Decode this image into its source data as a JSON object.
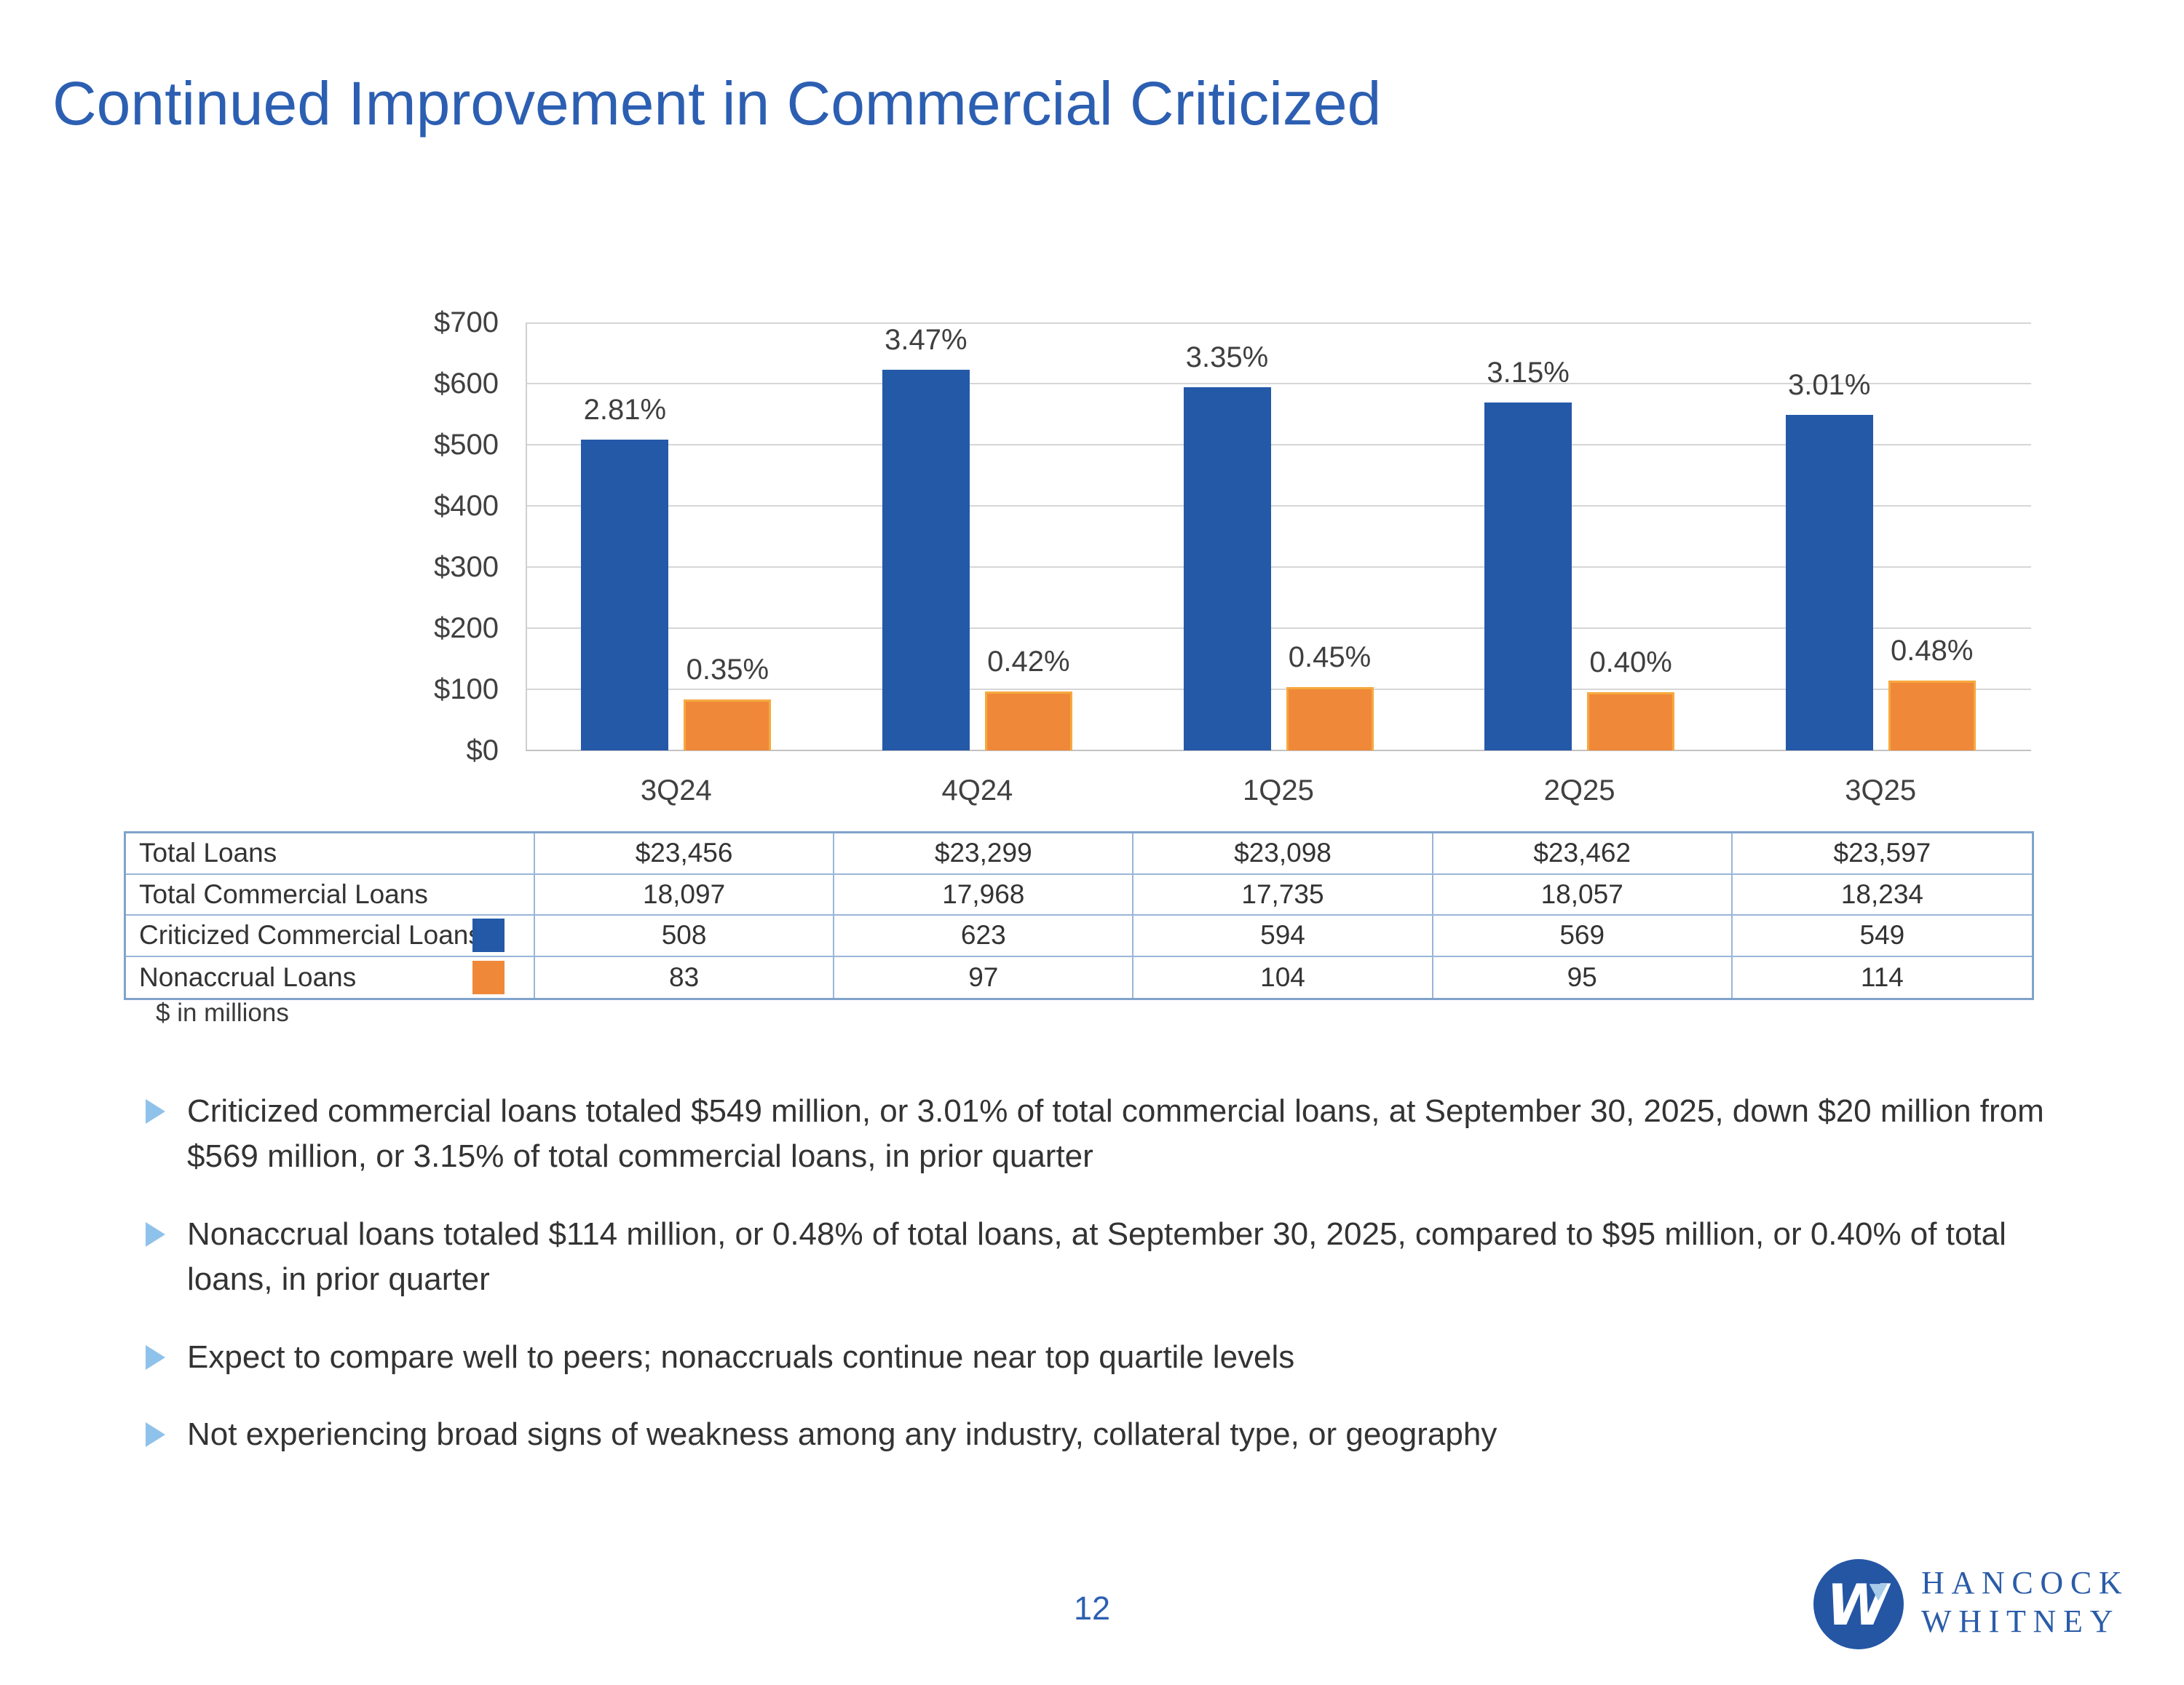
{
  "slide": {
    "title": "Continued Improvement in Commercial Criticized",
    "footnote": "$ in millions",
    "page_number": "12"
  },
  "chart_data": {
    "type": "bar",
    "title": "",
    "categories": [
      "3Q24",
      "4Q24",
      "1Q25",
      "2Q25",
      "3Q25"
    ],
    "series": [
      {
        "name": "Criticized Commercial Loans",
        "color": "#2459A8",
        "values": [
          508,
          623,
          594,
          569,
          549
        ],
        "data_labels": [
          "2.81%",
          "3.47%",
          "3.35%",
          "3.15%",
          "3.01%"
        ]
      },
      {
        "name": "Nonaccrual Loans",
        "color": "#F0883A",
        "border_color": "#F6A93E",
        "values": [
          83,
          97,
          104,
          95,
          114
        ],
        "data_labels": [
          "0.35%",
          "0.42%",
          "0.45%",
          "0.40%",
          "0.48%"
        ]
      }
    ],
    "ylabel": "",
    "xlabel": "",
    "ylim": [
      0,
      700
    ],
    "y_tick_step": 100,
    "y_ticks": [
      "$700",
      "$600",
      "$500",
      "$400",
      "$300",
      "$200",
      "$100",
      "$0"
    ],
    "grid": true,
    "legend_position": "table-swatches"
  },
  "table": {
    "rows": [
      {
        "label": "Total Loans",
        "swatch": null,
        "values": [
          "$23,456",
          "$23,299",
          "$23,098",
          "$23,462",
          "$23,597"
        ]
      },
      {
        "label": "Total Commercial Loans",
        "swatch": null,
        "values": [
          "18,097",
          "17,968",
          "17,735",
          "18,057",
          "18,234"
        ]
      },
      {
        "label": "Criticized Commercial Loans",
        "swatch": "#2459A8",
        "values": [
          "508",
          "623",
          "594",
          "569",
          "549"
        ]
      },
      {
        "label": "Nonaccrual Loans",
        "swatch": "#F0883A",
        "values": [
          "83",
          "97",
          "104",
          "95",
          "114"
        ]
      }
    ]
  },
  "bullets": [
    "Criticized commercial loans totaled $549 million, or 3.01% of total commercial loans, at September 30, 2025, down $20 million from $569 million, or 3.15% of total commercial loans, in prior quarter",
    "Nonaccrual loans totaled $114 million, or 0.48% of total loans, at September 30, 2025, compared to $95 million, or 0.40% of total loans, in prior quarter",
    "Expect to compare well to peers; nonaccruals continue near top quartile levels",
    "Not experiencing broad signs of weakness among any industry, collateral type, or geography"
  ],
  "logo": {
    "monogram": "W",
    "line1": "HANCOCK",
    "line2": "WHITNEY",
    "circle_color": "#2456A4",
    "accent_color": "#A7CBE8",
    "text_color": "#2A5CA8"
  }
}
